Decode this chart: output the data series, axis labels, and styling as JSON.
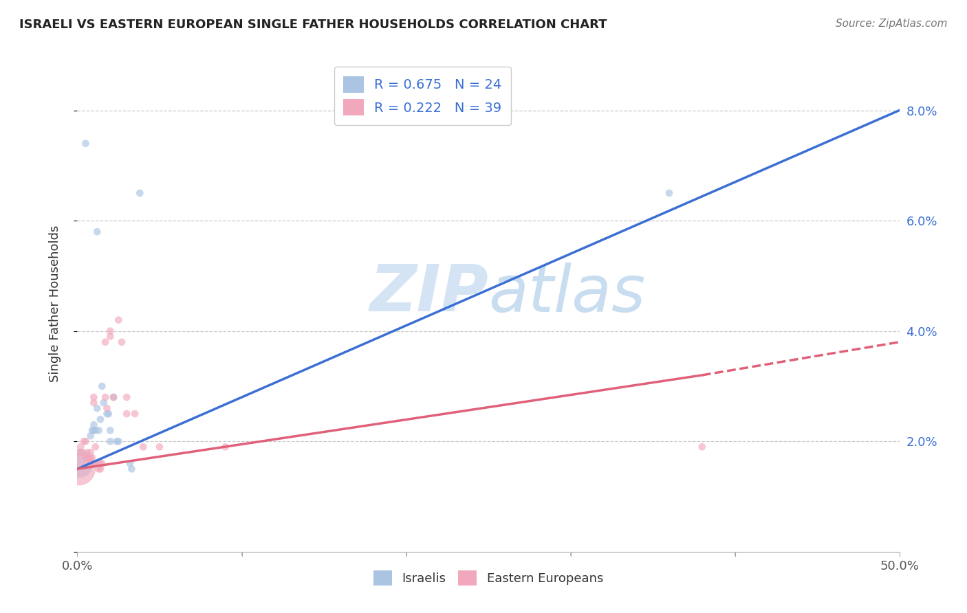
{
  "title": "ISRAELI VS EASTERN EUROPEAN SINGLE FATHER HOUSEHOLDS CORRELATION CHART",
  "source": "Source: ZipAtlas.com",
  "ylabel": "Single Father Households",
  "xlim": [
    0,
    0.5
  ],
  "ylim": [
    0,
    0.09
  ],
  "xticks": [
    0.0,
    0.1,
    0.2,
    0.3,
    0.4,
    0.5
  ],
  "yticks": [
    0.0,
    0.02,
    0.04,
    0.06,
    0.08
  ],
  "xtick_labels": [
    "0.0%",
    "",
    "",
    "",
    "",
    "50.0%"
  ],
  "ytick_labels_right": [
    "",
    "2.0%",
    "4.0%",
    "6.0%",
    "8.0%"
  ],
  "background_color": "#ffffff",
  "grid_color": "#c8c8c8",
  "watermark_zip": "ZIP",
  "watermark_atlas": "atlas",
  "legend_R1": "R = 0.675",
  "legend_N1": "N = 24",
  "legend_R2": "R = 0.222",
  "legend_N2": "N = 39",
  "israeli_color": "#aac4e2",
  "eastern_color": "#f2a8bc",
  "israeli_line_color": "#3b6fd4",
  "eastern_line_color": "#e0607a",
  "israeli_line": [
    [
      0.0,
      0.015
    ],
    [
      0.5,
      0.08
    ]
  ],
  "eastern_line_solid": [
    [
      0.0,
      0.015
    ],
    [
      0.38,
      0.032
    ]
  ],
  "eastern_line_dashed": [
    [
      0.38,
      0.032
    ],
    [
      0.5,
      0.038
    ]
  ],
  "israelis_scatter": [
    [
      0.005,
      0.074
    ],
    [
      0.038,
      0.065
    ],
    [
      0.36,
      0.065
    ],
    [
      0.012,
      0.058
    ],
    [
      0.015,
      0.03
    ],
    [
      0.016,
      0.027
    ],
    [
      0.012,
      0.026
    ],
    [
      0.018,
      0.025
    ],
    [
      0.014,
      0.024
    ],
    [
      0.01,
      0.023
    ],
    [
      0.013,
      0.022
    ],
    [
      0.011,
      0.022
    ],
    [
      0.01,
      0.022
    ],
    [
      0.009,
      0.022
    ],
    [
      0.008,
      0.021
    ],
    [
      0.022,
      0.028
    ],
    [
      0.019,
      0.025
    ],
    [
      0.02,
      0.022
    ],
    [
      0.02,
      0.02
    ],
    [
      0.024,
      0.02
    ],
    [
      0.025,
      0.02
    ],
    [
      0.032,
      0.016
    ],
    [
      0.033,
      0.015
    ],
    [
      0.001,
      0.016
    ]
  ],
  "israelis_sizes": [
    60,
    60,
    60,
    60,
    60,
    60,
    60,
    60,
    60,
    60,
    60,
    60,
    60,
    60,
    60,
    60,
    60,
    60,
    60,
    60,
    60,
    60,
    60,
    900
  ],
  "eastern_scatter": [
    [
      0.001,
      0.018
    ],
    [
      0.002,
      0.019
    ],
    [
      0.003,
      0.018
    ],
    [
      0.004,
      0.02
    ],
    [
      0.005,
      0.02
    ],
    [
      0.005,
      0.017
    ],
    [
      0.006,
      0.018
    ],
    [
      0.006,
      0.017
    ],
    [
      0.007,
      0.017
    ],
    [
      0.008,
      0.018
    ],
    [
      0.008,
      0.017
    ],
    [
      0.009,
      0.017
    ],
    [
      0.009,
      0.016
    ],
    [
      0.01,
      0.028
    ],
    [
      0.01,
      0.027
    ],
    [
      0.011,
      0.019
    ],
    [
      0.011,
      0.016
    ],
    [
      0.012,
      0.016
    ],
    [
      0.013,
      0.016
    ],
    [
      0.013,
      0.015
    ],
    [
      0.014,
      0.016
    ],
    [
      0.014,
      0.015
    ],
    [
      0.015,
      0.016
    ],
    [
      0.017,
      0.038
    ],
    [
      0.017,
      0.028
    ],
    [
      0.018,
      0.026
    ],
    [
      0.02,
      0.04
    ],
    [
      0.02,
      0.039
    ],
    [
      0.022,
      0.028
    ],
    [
      0.025,
      0.042
    ],
    [
      0.027,
      0.038
    ],
    [
      0.03,
      0.028
    ],
    [
      0.03,
      0.025
    ],
    [
      0.035,
      0.025
    ],
    [
      0.04,
      0.019
    ],
    [
      0.05,
      0.019
    ],
    [
      0.09,
      0.019
    ],
    [
      0.38,
      0.019
    ],
    [
      0.001,
      0.015
    ]
  ],
  "eastern_sizes": [
    60,
    60,
    60,
    60,
    60,
    60,
    60,
    60,
    60,
    60,
    60,
    60,
    60,
    60,
    60,
    60,
    60,
    60,
    60,
    60,
    60,
    60,
    60,
    60,
    60,
    60,
    60,
    60,
    60,
    60,
    60,
    60,
    60,
    60,
    60,
    60,
    60,
    60,
    1200
  ]
}
